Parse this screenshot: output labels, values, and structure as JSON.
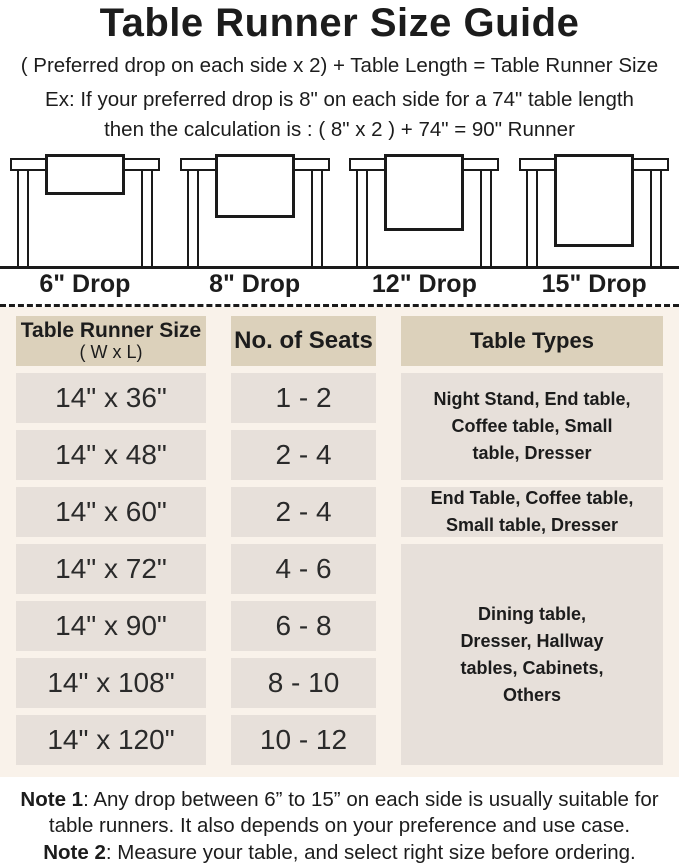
{
  "header": {
    "title": "Table Runner Size Guide",
    "formula": "( Preferred drop on each side x 2) + Table Length = Table Runner Size",
    "example_line1": "Ex: If your preferred drop is 8\" on each side for a 74\" table length",
    "example_line2": "then the calculation is : ( 8\" x 2 ) + 74\" = 90\" Runner"
  },
  "illustrations": {
    "drops": [
      {
        "label": "6\" Drop"
      },
      {
        "label": "8\" Drop"
      },
      {
        "label": "12\" Drop"
      },
      {
        "label": "15\" Drop"
      }
    ]
  },
  "size_table": {
    "headers": {
      "size_title": "Table Runner Size",
      "size_subtitle": "( W x L)",
      "seats": "No. of Seats",
      "types": "Table Types"
    },
    "rows": [
      {
        "size": "14\" x 36\"",
        "seats": "1 - 2"
      },
      {
        "size": "14\" x 48\"",
        "seats": "2 - 4"
      },
      {
        "size": "14\" x 60\"",
        "seats": "2 - 4"
      },
      {
        "size": "14\" x 72\"",
        "seats": "4 - 6"
      },
      {
        "size": "14\" x 90\"",
        "seats": "6 - 8"
      },
      {
        "size": "14\" x 108\"",
        "seats": "8 - 10"
      },
      {
        "size": "14\" x 120\"",
        "seats": "10 - 12"
      }
    ],
    "type_cells": [
      {
        "rows_spanned": "1-2",
        "text": "Night Stand, End table, Coffee table, Small table, Dresser",
        "lines": [
          "Night Stand, End table,",
          "Coffee table, Small",
          "table, Dresser"
        ]
      },
      {
        "rows_spanned": "3",
        "text": "End Table, Coffee table, Small table, Dresser",
        "lines": [
          "End Table, Coffee table,",
          "Small table, Dresser"
        ]
      },
      {
        "rows_spanned": "4-7",
        "text": "Dining table, Dresser, Hallway tables, Cabinets, Others",
        "lines": [
          "Dining table,",
          "Dresser, Hallway",
          "tables, Cabinets,",
          "Others"
        ]
      }
    ]
  },
  "notes": {
    "note1_label": "Note 1",
    "note1_text": ": Any drop between 6” to 15” on each side is usually suitable for table runners. It also depends on your preference and use case.",
    "note2_label": "Note 2",
    "note2_text": ": Measure your table, and select right size before ordering."
  },
  "colors": {
    "section_bg": "#f9f2ea",
    "header_cell_bg": "#dcd1bb",
    "data_cell_bg": "#e7e0da",
    "line_color": "#1a1a1a",
    "text_color": "#1c1c1c"
  }
}
